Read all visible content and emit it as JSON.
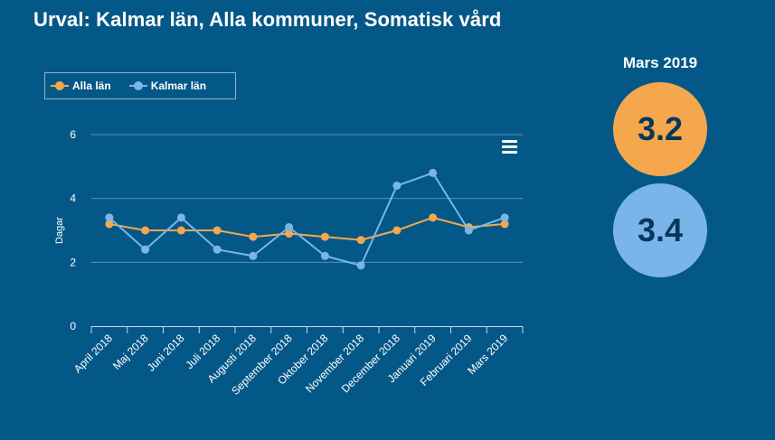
{
  "header": {
    "title": "Urval: Kalmar län, Alla kommuner, Somatisk vård"
  },
  "summary": {
    "month": "Mars 2019",
    "values": [
      {
        "label": "3.2",
        "color": "#f5a74e"
      },
      {
        "label": "3.4",
        "color": "#7ab5ea"
      }
    ]
  },
  "chart_data": {
    "type": "line",
    "categories": [
      "April 2018",
      "Maj 2018",
      "Juni 2018",
      "Juli 2018",
      "Augusti 2018",
      "September 2018",
      "Oktober 2018",
      "November 2018",
      "December 2018",
      "Januari 2019",
      "Februari 2019",
      "Mars 2019"
    ],
    "series": [
      {
        "name": "Alla län",
        "color": "#f5a74e",
        "values": [
          3.2,
          3.0,
          3.0,
          3.0,
          2.8,
          2.9,
          2.8,
          2.7,
          3.0,
          3.4,
          3.1,
          3.2
        ]
      },
      {
        "name": "Kalmar län",
        "color": "#7ab5ea",
        "values": [
          3.4,
          2.4,
          3.4,
          2.4,
          2.2,
          3.1,
          2.2,
          1.9,
          4.4,
          4.8,
          3.0,
          3.4
        ]
      }
    ],
    "ylabel": "Dagar",
    "xlabel": "",
    "ylim": [
      0,
      6
    ],
    "yticks": [
      0,
      2,
      4,
      6
    ],
    "grid": true,
    "legend": "top-left"
  }
}
